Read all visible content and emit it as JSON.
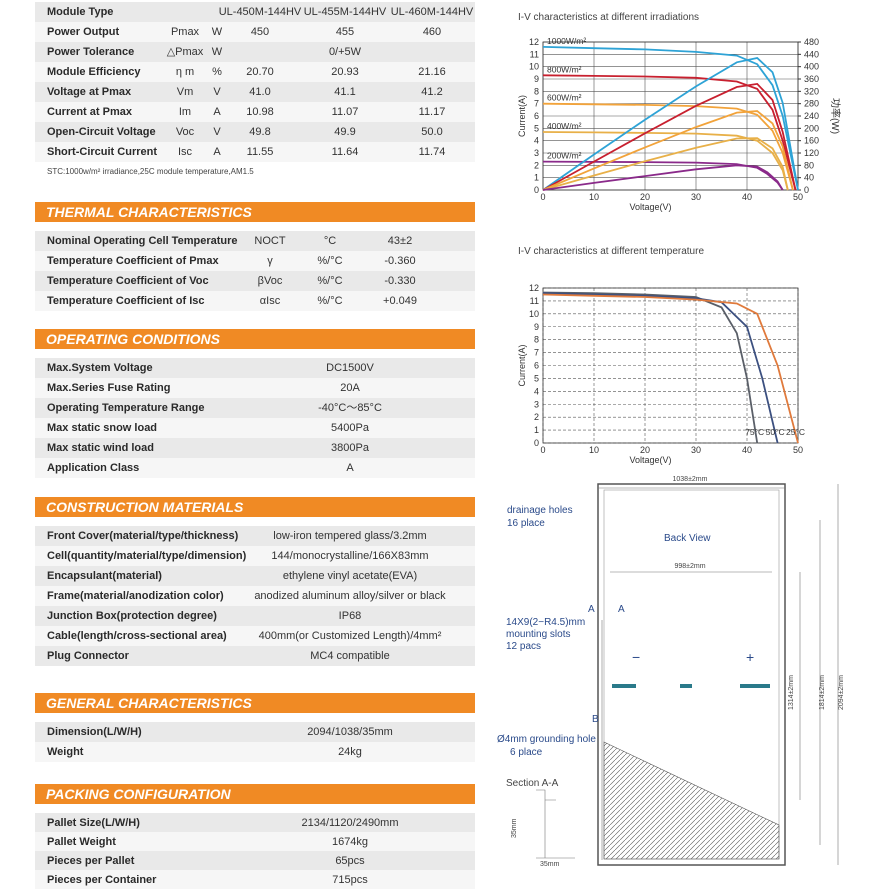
{
  "spec_table": {
    "header": [
      "Module Type",
      "UL-450M-144HV",
      "UL-455M-144HV",
      "UL-460M-144HV"
    ],
    "rows": [
      [
        "Power Output",
        "Pmax",
        "W",
        "450",
        "455",
        "460"
      ],
      [
        "Power Tolerance",
        "△Pmax",
        "W",
        "0/+5W"
      ],
      [
        "Module Efficiency",
        "η m",
        "%",
        "20.70",
        "20.93",
        "21.16"
      ],
      [
        "Voltage at Pmax",
        "Vm",
        "V",
        "41.0",
        "41.1",
        "41.2"
      ],
      [
        "Current at Pmax",
        "Im",
        "A",
        "10.98",
        "11.07",
        "11.17"
      ],
      [
        "Open-Circuit Voltage",
        "Voc",
        "V",
        "49.8",
        "49.9",
        "50.0"
      ],
      [
        "Short-Circuit Current",
        "Isc",
        "A",
        "11.55",
        "11.64",
        "11.74"
      ]
    ],
    "note": "STC:1000w/m² irradiance,25C module temperature,AM1.5"
  },
  "sections": [
    {
      "title": "THERMAL CHARACTERISTICS",
      "rows": [
        [
          "Nominal Operating Cell Temperature",
          "NOCT",
          "°C",
          "43±2"
        ],
        [
          "Temperature Coefficient of Pmax",
          "γ",
          "%/°C",
          "-0.360"
        ],
        [
          "Temperature Coefficient of Voc",
          "βVoc",
          "%/°C",
          "-0.330"
        ],
        [
          "Temperature Coefficient of Isc",
          "αIsc",
          "%/°C",
          "+0.049"
        ]
      ]
    },
    {
      "title": "OPERATING CONDITIONS",
      "rows": [
        [
          "Max.System Voltage",
          "DC1500V"
        ],
        [
          "Max.Series Fuse Rating",
          "20A"
        ],
        [
          "Operating Temperature Range",
          "-40°C～85°C"
        ],
        [
          "Max static snow load",
          "5400Pa"
        ],
        [
          "Max static wind load",
          "3800Pa"
        ],
        [
          "Application Class",
          "A"
        ]
      ]
    },
    {
      "title": "CONSTRUCTION MATERIALS",
      "rows": [
        [
          "Front Cover(material/type/thickness)",
          "low-iron tempered glass/3.2mm"
        ],
        [
          "Cell(quantity/material/type/dimension)",
          "144/monocrystalline/166X83mm"
        ],
        [
          "Encapsulant(material)",
          "ethylene vinyl acetate(EVA)"
        ],
        [
          "Frame(material/anodization color)",
          "anodized aluminum alloy/silver or black"
        ],
        [
          "Junction Box(protection degree)",
          "IP68"
        ],
        [
          "Cable(length/cross-sectional area)",
          "400mm(or Customized Length)/4mm²"
        ],
        [
          "Plug Connector",
          "MC4 compatible"
        ]
      ]
    },
    {
      "title": "GENERAL CHARACTERISTICS",
      "rows": [
        [
          "Dimension(L/W/H)",
          "2094/1038/35mm"
        ],
        [
          "Weight",
          "24kg"
        ]
      ]
    },
    {
      "title": "PACKING CONFIGURATION",
      "rows": [
        [
          "Pallet Size(L/W/H)",
          "2134/1120/2490mm"
        ],
        [
          "Pallet Weight",
          "1674kg"
        ],
        [
          "Pieces per Pallet",
          "65pcs"
        ],
        [
          "Pieces per Container",
          "715pcs"
        ]
      ]
    }
  ],
  "chart_data": [
    {
      "type": "line",
      "title": "I-V characteristics at different irradiations",
      "x_label": "Voltage(V)",
      "y_label": "Current(A)",
      "y2_label": "功率(W)",
      "grid": "solid",
      "xlim": [
        0,
        50
      ],
      "ylim": [
        0,
        12
      ],
      "y2lim": [
        0,
        480
      ],
      "xticks": [
        0,
        10,
        20,
        30,
        40,
        50
      ],
      "yticks": [
        0,
        1,
        2,
        3,
        4,
        5,
        6,
        7,
        8,
        9,
        10,
        11,
        12
      ],
      "y2ticks": [
        0,
        40,
        80,
        120,
        160,
        200,
        240,
        280,
        320,
        360,
        400,
        440,
        480
      ],
      "series": [
        {
          "name": "1000W/m²",
          "color": "#2ea3d6",
          "x": [
            0,
            10,
            20,
            30,
            38,
            42,
            45,
            47,
            50
          ],
          "values": [
            11.6,
            11.5,
            11.4,
            11.2,
            10.9,
            10.2,
            8.5,
            6,
            0
          ]
        },
        {
          "name": "800W/m²",
          "color": "#c8202f",
          "x": [
            0,
            10,
            20,
            30,
            38,
            42,
            45,
            47,
            49.5
          ],
          "values": [
            9.3,
            9.25,
            9.2,
            9.1,
            8.8,
            8.2,
            6.5,
            4,
            0
          ]
        },
        {
          "name": "600W/m²",
          "color": "#f2a33a",
          "x": [
            0,
            10,
            20,
            30,
            38,
            42,
            45,
            47,
            49
          ],
          "values": [
            7,
            6.95,
            6.9,
            6.8,
            6.6,
            6.1,
            4.8,
            3,
            0
          ]
        },
        {
          "name": "400W/m²",
          "color": "#e8b048",
          "x": [
            0,
            10,
            20,
            30,
            38,
            42,
            45,
            47,
            48
          ],
          "values": [
            4.7,
            4.67,
            4.63,
            4.57,
            4.4,
            4,
            3,
            1.6,
            0
          ]
        },
        {
          "name": "200W/m²",
          "color": "#8a2a8a",
          "x": [
            0,
            10,
            20,
            30,
            38,
            42,
            44,
            46,
            47
          ],
          "values": [
            2.3,
            2.28,
            2.26,
            2.22,
            2.1,
            1.8,
            1.3,
            0.6,
            0
          ]
        },
        {
          "axis": "y2",
          "color": "#2ea3d6",
          "x": [
            0,
            10,
            20,
            30,
            38,
            42,
            45,
            47,
            50
          ],
          "values": [
            0,
            115,
            228,
            336,
            414,
            428,
            382,
            282,
            0
          ]
        },
        {
          "axis": "y2",
          "color": "#c8202f",
          "x": [
            0,
            10,
            20,
            30,
            38,
            42,
            45,
            47,
            49.5
          ],
          "values": [
            0,
            92,
            184,
            273,
            334,
            344,
            292,
            188,
            0
          ]
        },
        {
          "axis": "y2",
          "color": "#f2a33a",
          "x": [
            0,
            10,
            20,
            30,
            38,
            42,
            45,
            47,
            49
          ],
          "values": [
            0,
            70,
            138,
            204,
            251,
            256,
            216,
            141,
            0
          ]
        },
        {
          "axis": "y2",
          "color": "#e8b048",
          "x": [
            0,
            10,
            20,
            30,
            38,
            42,
            45,
            47,
            48
          ],
          "values": [
            0,
            47,
            93,
            137,
            167,
            168,
            135,
            75,
            0
          ]
        },
        {
          "axis": "y2",
          "color": "#8a2a8a",
          "x": [
            0,
            10,
            20,
            30,
            38,
            42,
            44,
            46,
            47
          ],
          "values": [
            0,
            23,
            45,
            67,
            80,
            76,
            57,
            28,
            0
          ]
        }
      ]
    },
    {
      "type": "line",
      "title": "I-V characteristics at different temperature",
      "x_label": "Voltage(V)",
      "y_label": "Current(A)",
      "grid": "dashed",
      "xlim": [
        0,
        50
      ],
      "ylim": [
        0,
        12
      ],
      "xticks": [
        0,
        10,
        20,
        30,
        40,
        50
      ],
      "yticks": [
        0,
        1,
        2,
        3,
        4,
        5,
        6,
        7,
        8,
        9,
        10,
        11,
        12
      ],
      "series": [
        {
          "name": "75°C",
          "color": "#5a5f68",
          "x": [
            0,
            10,
            20,
            30,
            35,
            38,
            40,
            42
          ],
          "values": [
            11.65,
            11.6,
            11.5,
            11.3,
            10.5,
            8.5,
            5,
            0
          ]
        },
        {
          "name": "50°C",
          "color": "#3c5080",
          "x": [
            0,
            10,
            20,
            30,
            35,
            40,
            43,
            46
          ],
          "values": [
            11.6,
            11.5,
            11.4,
            11.2,
            10.9,
            9,
            5,
            0
          ]
        },
        {
          "name": "25°C",
          "color": "#e07a3c",
          "x": [
            0,
            10,
            20,
            30,
            38,
            42,
            46,
            50
          ],
          "values": [
            11.5,
            11.4,
            11.3,
            11.1,
            10.8,
            10,
            6,
            0
          ]
        }
      ]
    }
  ],
  "diagram": {
    "texts": [
      "1038±2mm",
      "drainage holes",
      "16 place",
      "Back View",
      "998±2mm",
      "A",
      "A",
      "14X9(2−R4.5)mm",
      "mounting slots",
      "12 pacs",
      "−",
      "+",
      "B",
      "Ø4mm grounding hole",
      "6 place",
      "Section A-A",
      "35mm",
      "35mm",
      "1314±2mm",
      "1814±2mm",
      "2094±2mm"
    ]
  }
}
